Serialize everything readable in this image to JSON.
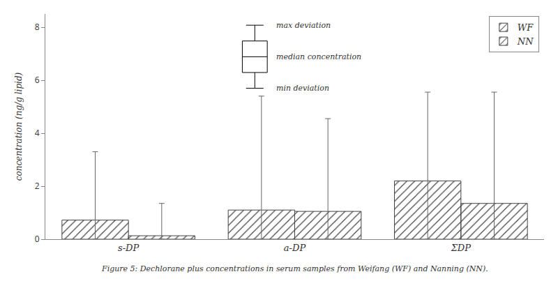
{
  "chart_data": {
    "type": "bar",
    "categories": [
      "s-DP",
      "a-DP",
      "ΣDP"
    ],
    "series": [
      {
        "name": "WF",
        "color": "#ffffff",
        "values": [
          0.72,
          1.1,
          2.2
        ],
        "error_top": [
          3.3,
          5.4,
          5.55
        ],
        "error_bottom": [
          0.0,
          0.0,
          0.0
        ]
      },
      {
        "name": "NN",
        "color": "#b0b0b0",
        "values": [
          0.13,
          1.05,
          1.35
        ],
        "error_top": [
          1.35,
          4.55,
          5.55
        ],
        "error_bottom": [
          0.0,
          0.0,
          0.0
        ]
      }
    ],
    "ylabel": "concentration (ng/g lipid)",
    "ylim": [
      0,
      8.5
    ],
    "yticks": [
      0,
      2,
      4,
      6,
      8
    ],
    "grid": false,
    "legend": "upper right",
    "annotations": [
      "max deviation",
      "median concentration",
      "min deviation"
    ],
    "caption": "Figure 5: Dechlorane plus concentrations in serum samples from Weifang (WF) and Nanning (NN)."
  }
}
